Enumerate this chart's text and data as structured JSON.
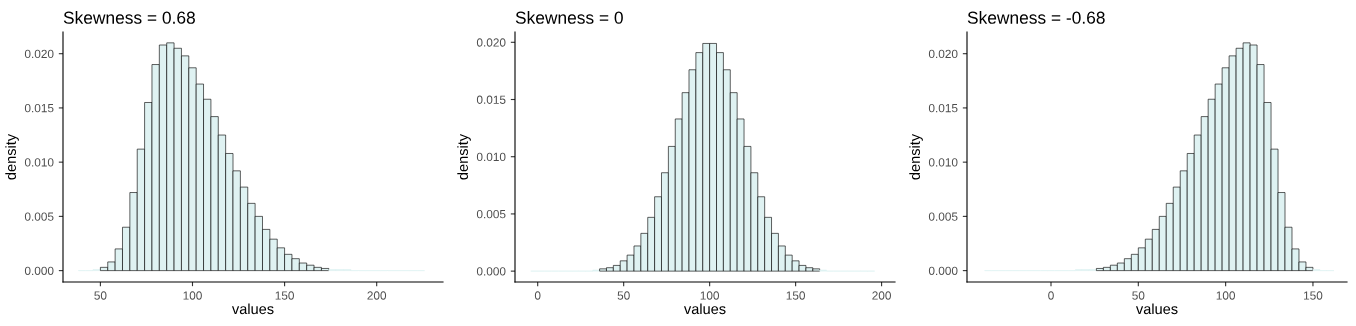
{
  "chart_data": [
    {
      "type": "histogram",
      "title": "Skewness = 0.68",
      "xlabel": "values",
      "ylabel": "density",
      "color": "#dff2f2",
      "bins": [
        38,
        42,
        46,
        50,
        54,
        58,
        62,
        66,
        70,
        74,
        78,
        82,
        86,
        90,
        94,
        98,
        102,
        106,
        110,
        114,
        118,
        122,
        126,
        130,
        134,
        138,
        142,
        146,
        150,
        154,
        158,
        162,
        166,
        170,
        174,
        178,
        182,
        186,
        190,
        194,
        198,
        202,
        206,
        210,
        214,
        218,
        222,
        226
      ],
      "values": [
        0,
        0,
        0.0001,
        0.0003,
        0.0008,
        0.002,
        0.004,
        0.0072,
        0.0112,
        0.0155,
        0.019,
        0.0208,
        0.021,
        0.0205,
        0.0198,
        0.0187,
        0.0172,
        0.0158,
        0.0142,
        0.0125,
        0.0108,
        0.0092,
        0.0077,
        0.0062,
        0.005,
        0.0038,
        0.0029,
        0.0021,
        0.0015,
        0.0011,
        0.0007,
        0.0005,
        0.0003,
        0.0002,
        0.0001,
        0.0001,
        0.0001,
        0,
        0,
        0,
        0,
        0,
        0,
        0,
        0,
        0,
        0
      ],
      "xlim": [
        29.7,
        236
      ],
      "ylim": [
        -0.00105,
        0.022
      ],
      "xticks": [
        50,
        100,
        150,
        200
      ],
      "yticks": [
        {
          "value": 0,
          "label": "0.000"
        },
        {
          "value": 0.005,
          "label": "0.005"
        },
        {
          "value": 0.01,
          "label": "0.010"
        },
        {
          "value": 0.015,
          "label": "0.015"
        },
        {
          "value": 0.02,
          "label": "0.020"
        }
      ]
    },
    {
      "type": "histogram",
      "title": "Skewness = 0",
      "xlabel": "values",
      "ylabel": "density",
      "color": "#dff2f2",
      "bins": [
        -4,
        0,
        4,
        8,
        12,
        16,
        20,
        24,
        28,
        32,
        36,
        40,
        44,
        48,
        52,
        56,
        60,
        64,
        68,
        72,
        76,
        80,
        84,
        88,
        92,
        96,
        100,
        104,
        108,
        112,
        116,
        120,
        124,
        128,
        132,
        136,
        140,
        144,
        148,
        152,
        156,
        160,
        164,
        168,
        172,
        176,
        180,
        184,
        188,
        192,
        196
      ],
      "values": [
        0,
        0,
        0,
        0,
        0,
        0,
        0,
        0,
        0,
        0.0001,
        0.0002,
        0.0003,
        0.0005,
        0.0009,
        0.0014,
        0.0022,
        0.0033,
        0.0047,
        0.0065,
        0.0086,
        0.0109,
        0.0133,
        0.0156,
        0.0176,
        0.0191,
        0.0199,
        0.0199,
        0.0191,
        0.0176,
        0.0156,
        0.0133,
        0.0109,
        0.0086,
        0.0065,
        0.0047,
        0.0033,
        0.0022,
        0.0014,
        0.0009,
        0.0005,
        0.0003,
        0.0002,
        0.0001,
        0,
        0,
        0,
        0,
        0,
        0,
        0
      ],
      "xlim": [
        -13.2,
        207.8
      ],
      "ylim": [
        -0.00095,
        0.0209
      ],
      "xticks": [
        0,
        50,
        100,
        150,
        200
      ],
      "yticks": [
        {
          "value": 0,
          "label": "0.000"
        },
        {
          "value": 0.005,
          "label": "0.005"
        },
        {
          "value": 0.01,
          "label": "0.010"
        },
        {
          "value": 0.015,
          "label": "0.015"
        },
        {
          "value": 0.02,
          "label": "0.020"
        }
      ]
    },
    {
      "type": "histogram",
      "title": "Skewness = -0.68",
      "xlabel": "values",
      "ylabel": "density",
      "color": "#dff2f2",
      "bins": [
        -38,
        -34,
        -30,
        -26,
        -22,
        -18,
        -14,
        -10,
        -6,
        -2,
        2,
        6,
        10,
        14,
        18,
        22,
        26,
        30,
        34,
        38,
        42,
        46,
        50,
        54,
        58,
        62,
        66,
        70,
        74,
        78,
        82,
        86,
        90,
        94,
        98,
        102,
        106,
        110,
        114,
        118,
        122,
        126,
        130,
        134,
        138,
        142,
        146,
        150,
        154,
        158,
        162
      ],
      "values": [
        0,
        0,
        0,
        0,
        0,
        0,
        0,
        0,
        0,
        0,
        0,
        0,
        0,
        0.0001,
        0.0001,
        0.0001,
        0.0002,
        0.0003,
        0.0005,
        0.0007,
        0.0011,
        0.0015,
        0.0021,
        0.0029,
        0.0038,
        0.005,
        0.0062,
        0.0077,
        0.0092,
        0.0108,
        0.0125,
        0.0142,
        0.0158,
        0.0172,
        0.0187,
        0.0198,
        0.0205,
        0.021,
        0.0208,
        0.019,
        0.0155,
        0.0112,
        0.0072,
        0.004,
        0.002,
        0.0008,
        0.0003,
        0.0001,
        0,
        0
      ],
      "xlim": [
        -48.1,
        169.5
      ],
      "ylim": [
        -0.00105,
        0.022
      ],
      "xticks": [
        0,
        50,
        100,
        150
      ],
      "yticks": [
        {
          "value": 0,
          "label": "0.000"
        },
        {
          "value": 0.005,
          "label": "0.005"
        },
        {
          "value": 0.01,
          "label": "0.010"
        },
        {
          "value": 0.015,
          "label": "0.015"
        },
        {
          "value": 0.02,
          "label": "0.020"
        }
      ]
    }
  ]
}
